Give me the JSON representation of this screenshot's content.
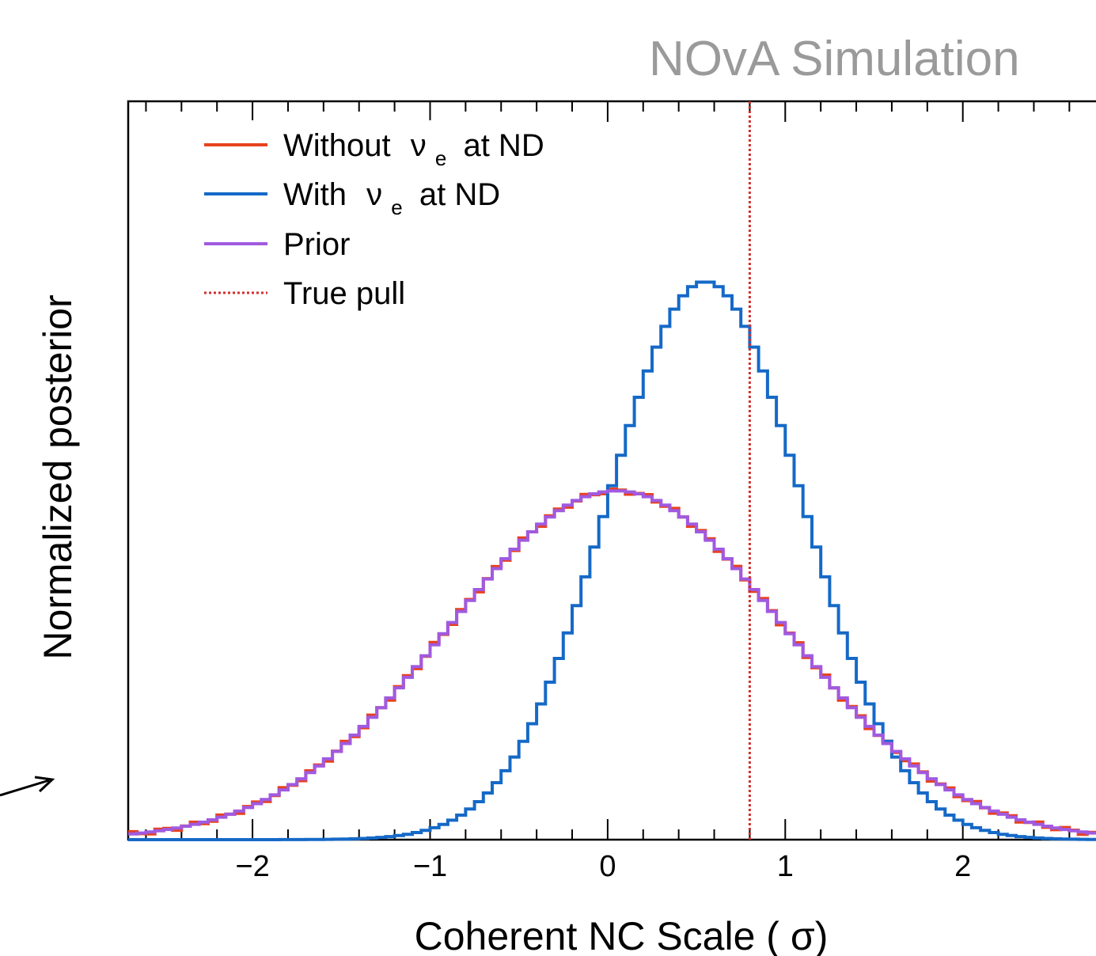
{
  "chart_data": {
    "type": "line",
    "title": "NOvA Simulation",
    "xlabel": "Coherent NC Scale ( σ)",
    "ylabel": "Normalized posterior",
    "xlim": [
      -2.7,
      2.75
    ],
    "ylim": [
      0,
      1.27
    ],
    "xticks": [
      -2,
      -1,
      0,
      1,
      2
    ],
    "xtick_labels": [
      "−2",
      "−1",
      "0",
      "1",
      "2"
    ],
    "y_tick_labels_shown": false,
    "grid": false,
    "legend_position": "top-left",
    "colors": {
      "without": "#e8411f",
      "with": "#1569c7",
      "prior": "#a05ae0",
      "truepull": "#d0302e",
      "watermark": "#9a9a9a"
    },
    "legend": {
      "without": {
        "label": "Without",
        "nu": "ν",
        "sub": "e",
        "tail": "at ND"
      },
      "with": {
        "label": "With",
        "nu": "ν",
        "sub": "e",
        "tail": "at ND"
      },
      "prior": {
        "label": "Prior"
      },
      "truepull": {
        "label": "True pull"
      }
    },
    "series": [
      {
        "name": "Without νe at ND",
        "style": "step",
        "shape": "gaussian",
        "mean": 0.05,
        "sigma": 0.95,
        "peak": 0.6
      },
      {
        "name": "With νe at ND",
        "style": "step",
        "shape": "gaussian",
        "mean": 0.55,
        "sigma": 0.55,
        "peak": 0.96
      },
      {
        "name": "Prior",
        "style": "step",
        "shape": "gaussian",
        "mean": 0.05,
        "sigma": 0.95,
        "peak": 0.6
      }
    ],
    "bin_width": 0.05,
    "true_pull_x": 0.8
  }
}
